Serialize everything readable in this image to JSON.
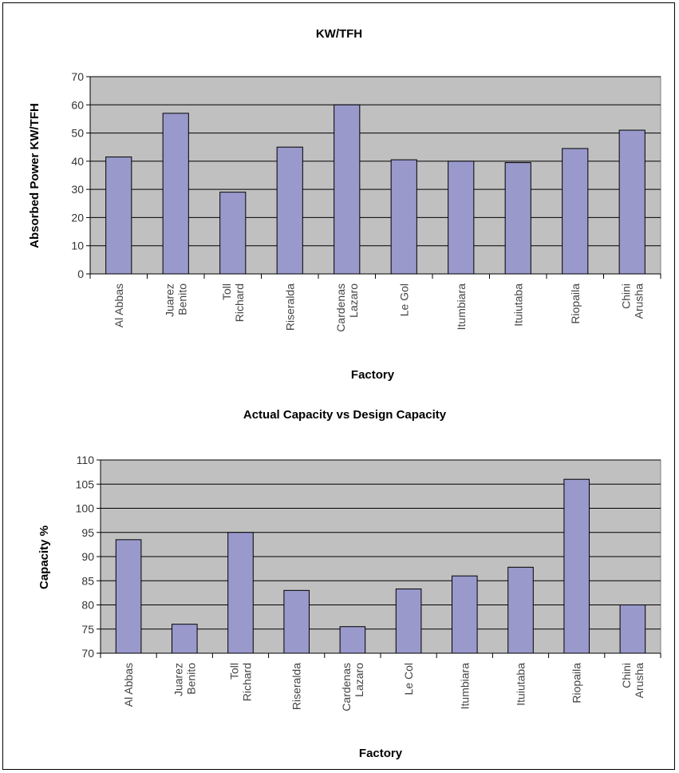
{
  "chart_data": [
    {
      "type": "bar",
      "title": "KW/TFH",
      "xlabel": "Factory",
      "ylabel": "Absorbed Power KW/TFH",
      "ylim": [
        0,
        70
      ],
      "yticks": [
        0,
        10,
        20,
        30,
        40,
        50,
        60,
        70
      ],
      "grid": true,
      "categories": [
        "Al Abbas",
        "Benito Juarez",
        "Richard Toll",
        "Riseralda",
        "Lazaro Cardenas",
        "Le Gol",
        "Itumbiara",
        "Ituiutaba",
        "Riopaila",
        "Arusha Chini"
      ],
      "category_lines": [
        [
          "Al Abbas"
        ],
        [
          "Benito",
          "Juarez"
        ],
        [
          "Richard",
          "Toll"
        ],
        [
          "Riseralda"
        ],
        [
          "Lazaro",
          "Cardenas"
        ],
        [
          "Le Gol"
        ],
        [
          "Itumbiara"
        ],
        [
          "Ituiutaba"
        ],
        [
          "Riopaila"
        ],
        [
          "Arusha",
          "Chini"
        ]
      ],
      "values": [
        41.5,
        57,
        29,
        45,
        60,
        40.5,
        40,
        39.5,
        44.5,
        51
      ],
      "colors": {
        "bar": "#9999cc",
        "plot_bg": "#c0c0c0",
        "grid": "#000000"
      }
    },
    {
      "type": "bar",
      "title": "Actual Capacity vs Design Capacity",
      "xlabel": "Factory",
      "ylabel": "Capacity %",
      "ylim": [
        70,
        110
      ],
      "yticks": [
        70,
        75,
        80,
        85,
        90,
        95,
        100,
        105,
        110
      ],
      "grid": true,
      "categories": [
        "Al Abbas",
        "Benito Juarez",
        "Richard Toll",
        "Riseralda",
        "Lazaro Cardenas",
        "Le Col",
        "Itumbiara",
        "Ituiutaba",
        "Riopaila",
        "Arusha Chini"
      ],
      "category_lines": [
        [
          "Al Abbas"
        ],
        [
          "Benito",
          "Juarez"
        ],
        [
          "Richard",
          "Toll"
        ],
        [
          "Riseralda"
        ],
        [
          "Lazaro",
          "Cardenas"
        ],
        [
          "Le Col"
        ],
        [
          "Itumbiara"
        ],
        [
          "Ituiutaba"
        ],
        [
          "Riopaila"
        ],
        [
          "Arusha",
          "Chini"
        ]
      ],
      "values": [
        93.5,
        76,
        95,
        83,
        75.5,
        83.3,
        86,
        87.8,
        106,
        80
      ],
      "colors": {
        "bar": "#9999cc",
        "plot_bg": "#c0c0c0",
        "grid": "#000000"
      }
    }
  ]
}
